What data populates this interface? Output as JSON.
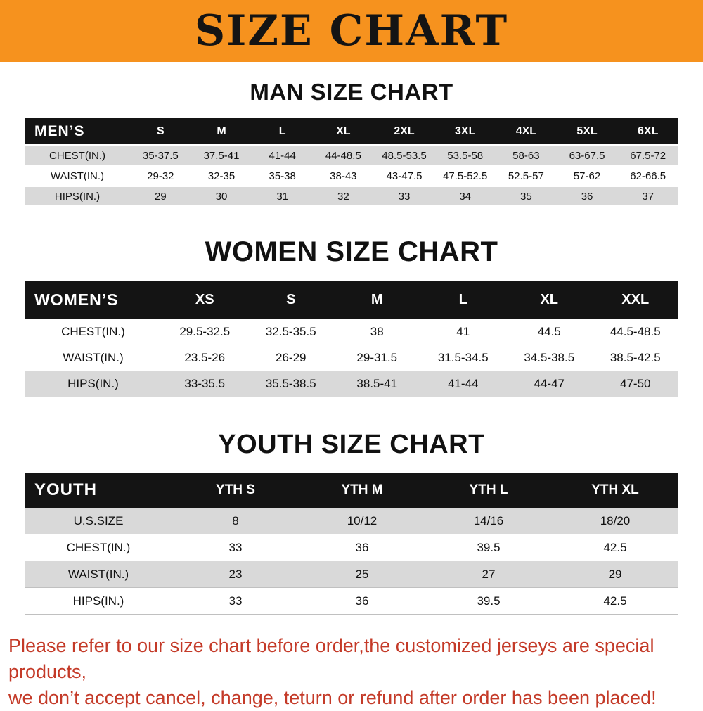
{
  "banner": {
    "title": "SIZE CHART",
    "bg_color": "#f6921e",
    "text_color": "#141414"
  },
  "sections": [
    {
      "title": "MAN SIZE CHART",
      "corner_label": "MEN’S",
      "columns": [
        "S",
        "M",
        "L",
        "XL",
        "2XL",
        "3XL",
        "4XL",
        "5XL",
        "6XL"
      ],
      "rows": [
        {
          "label": "CHEST(IN.)",
          "bg": "#d9d9d9",
          "values": [
            "35-37.5",
            "37.5-41",
            "41-44",
            "44-48.5",
            "48.5-53.5",
            "53.5-58",
            "58-63",
            "63-67.5",
            "67.5-72"
          ]
        },
        {
          "label": "WAIST(IN.)",
          "bg": "#ffffff",
          "values": [
            "29-32",
            "32-35",
            "35-38",
            "38-43",
            "43-47.5",
            "47.5-52.5",
            "52.5-57",
            "57-62",
            "62-66.5"
          ]
        },
        {
          "label": "HIPS(IN.)",
          "bg": "#d9d9d9",
          "values": [
            "29",
            "30",
            "31",
            "32",
            "33",
            "34",
            "35",
            "36",
            "37"
          ]
        }
      ]
    },
    {
      "title": "WOMEN SIZE CHART",
      "corner_label": "WOMEN’S",
      "columns": [
        "XS",
        "S",
        "M",
        "L",
        "XL",
        "XXL"
      ],
      "rows": [
        {
          "label": "CHEST(IN.)",
          "bg": "#ffffff",
          "values": [
            "29.5-32.5",
            "32.5-35.5",
            "38",
            "41",
            "44.5",
            "44.5-48.5"
          ]
        },
        {
          "label": "WAIST(IN.)",
          "bg": "#ffffff",
          "values": [
            "23.5-26",
            "26-29",
            "29-31.5",
            "31.5-34.5",
            "34.5-38.5",
            "38.5-42.5"
          ]
        },
        {
          "label": "HIPS(IN.)",
          "bg": "#d9d9d9",
          "values": [
            "33-35.5",
            "35.5-38.5",
            "38.5-41",
            "41-44",
            "44-47",
            "47-50"
          ]
        }
      ]
    },
    {
      "title": "YOUTH SIZE CHART",
      "corner_label": "YOUTH",
      "columns": [
        "YTH S",
        "YTH M",
        "YTH L",
        "YTH XL"
      ],
      "rows": [
        {
          "label": "U.S.SIZE",
          "bg": "#d9d9d9",
          "values": [
            "8",
            "10/12",
            "14/16",
            "18/20"
          ]
        },
        {
          "label": "CHEST(IN.)",
          "bg": "#ffffff",
          "values": [
            "33",
            "36",
            "39.5",
            "42.5"
          ]
        },
        {
          "label": "WAIST(IN.)",
          "bg": "#d9d9d9",
          "values": [
            "23",
            "25",
            "27",
            "29"
          ]
        },
        {
          "label": "HIPS(IN.)",
          "bg": "#ffffff",
          "values": [
            "33",
            "36",
            "39.5",
            "42.5"
          ]
        }
      ]
    }
  ],
  "footer": {
    "lines": [
      "Please refer to our size chart before order,the customized jerseys are special products,",
      "we don’t accept cancel, change, teturn or refund after order has been placed!"
    ],
    "text_color": "#c43a28"
  }
}
